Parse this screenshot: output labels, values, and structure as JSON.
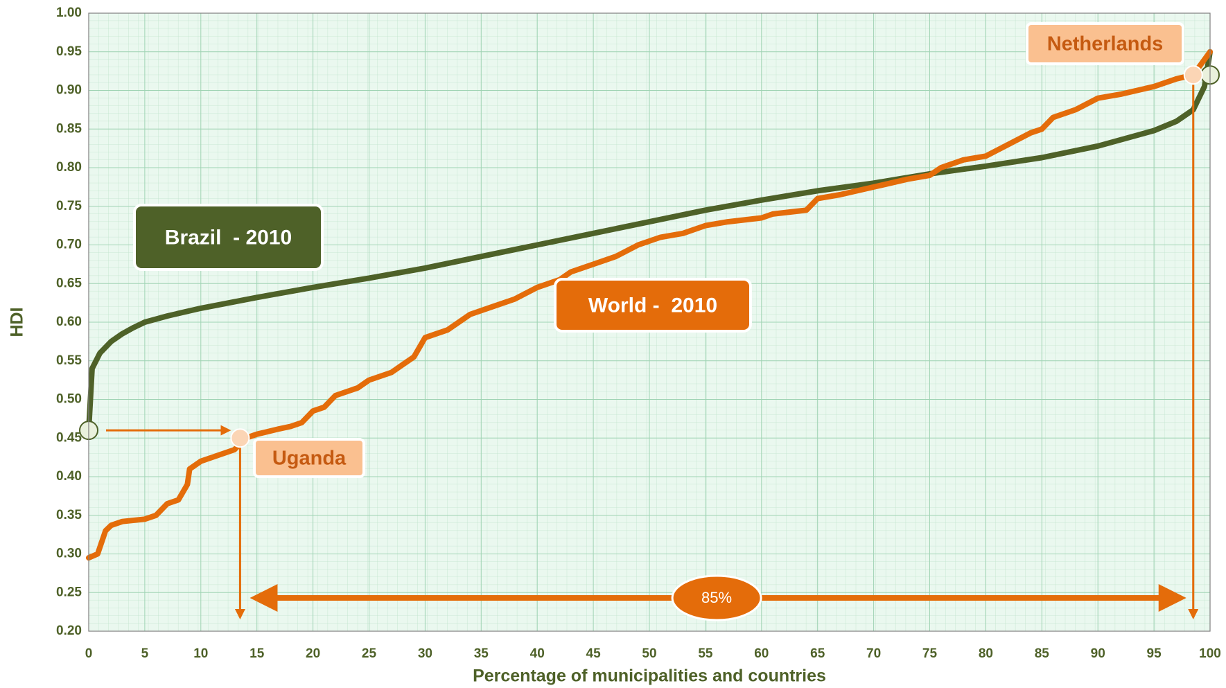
{
  "chart_data": {
    "type": "line",
    "x_label": "Percentage of municipalities and countries",
    "y_label": "HDI",
    "xlim": [
      0,
      100
    ],
    "xticks": [
      0,
      5,
      10,
      15,
      20,
      25,
      30,
      35,
      40,
      45,
      50,
      55,
      60,
      65,
      70,
      75,
      80,
      85,
      90,
      95,
      100
    ],
    "ylim": [
      0.2,
      1.0
    ],
    "yticks": [
      {
        "value": 0.2,
        "label": "0.20"
      },
      {
        "value": 0.25,
        "label": "0.25"
      },
      {
        "value": 0.3,
        "label": "0.30"
      },
      {
        "value": 0.35,
        "label": "0.35"
      },
      {
        "value": 0.4,
        "label": "0.40"
      },
      {
        "value": 0.45,
        "label": "0.45"
      },
      {
        "value": 0.5,
        "label": "0.50"
      },
      {
        "value": 0.55,
        "label": "0.55"
      },
      {
        "value": 0.6,
        "label": "0.60"
      },
      {
        "value": 0.65,
        "label": "0.65"
      },
      {
        "value": 0.7,
        "label": "0.70"
      },
      {
        "value": 0.75,
        "label": "0.75"
      },
      {
        "value": 0.8,
        "label": "0.80"
      },
      {
        "value": 0.85,
        "label": "0.85"
      },
      {
        "value": 0.9,
        "label": "0.90"
      },
      {
        "value": 0.95,
        "label": "0.95"
      },
      {
        "value": 1.0,
        "label": "1.00"
      }
    ],
    "grid": true,
    "series": [
      {
        "name": "Brazil  - 2010",
        "color": "#4e6128",
        "x": [
          0,
          0.3,
          1,
          2,
          3,
          4,
          5,
          7,
          10,
          15,
          20,
          25,
          30,
          35,
          40,
          45,
          50,
          55,
          60,
          65,
          70,
          75,
          80,
          85,
          90,
          95,
          97,
          98.5,
          99.5,
          100
        ],
        "values": [
          0.46,
          0.54,
          0.56,
          0.575,
          0.585,
          0.593,
          0.6,
          0.608,
          0.618,
          0.632,
          0.645,
          0.657,
          0.67,
          0.685,
          0.7,
          0.715,
          0.73,
          0.745,
          0.758,
          0.77,
          0.78,
          0.792,
          0.802,
          0.813,
          0.828,
          0.848,
          0.86,
          0.875,
          0.905,
          0.95
        ]
      },
      {
        "name": "World -  2010",
        "color": "#e46c0a",
        "x": [
          0,
          0.8,
          1.5,
          2,
          3,
          5,
          6,
          7,
          8,
          8.8,
          9,
          10,
          11,
          13,
          14,
          15,
          17,
          18,
          19,
          20,
          21,
          22,
          24,
          25,
          27,
          28,
          29,
          30,
          31,
          32,
          34,
          36,
          38,
          40,
          42,
          43,
          45,
          47,
          49,
          51,
          53,
          55,
          57,
          60,
          61,
          64,
          65,
          67,
          70,
          73,
          75,
          76,
          78,
          80,
          82,
          84,
          85,
          86,
          88,
          90,
          92,
          95,
          97,
          98.5,
          99,
          100
        ],
        "values": [
          0.295,
          0.3,
          0.33,
          0.337,
          0.342,
          0.345,
          0.35,
          0.365,
          0.37,
          0.39,
          0.41,
          0.42,
          0.425,
          0.435,
          0.45,
          0.455,
          0.462,
          0.465,
          0.47,
          0.485,
          0.49,
          0.505,
          0.515,
          0.525,
          0.535,
          0.545,
          0.555,
          0.58,
          0.585,
          0.59,
          0.61,
          0.62,
          0.63,
          0.645,
          0.655,
          0.665,
          0.675,
          0.685,
          0.7,
          0.71,
          0.715,
          0.725,
          0.73,
          0.735,
          0.74,
          0.745,
          0.76,
          0.765,
          0.775,
          0.785,
          0.79,
          0.8,
          0.81,
          0.815,
          0.83,
          0.845,
          0.85,
          0.865,
          0.875,
          0.89,
          0.895,
          0.905,
          0.915,
          0.92,
          0.93,
          0.95
        ]
      }
    ],
    "annotations": [
      {
        "text": "Uganda",
        "x": 13.5,
        "y": 0.45
      },
      {
        "text": "Netherlands",
        "x": 98.5,
        "y": 0.92
      }
    ],
    "span_label": "85%"
  }
}
